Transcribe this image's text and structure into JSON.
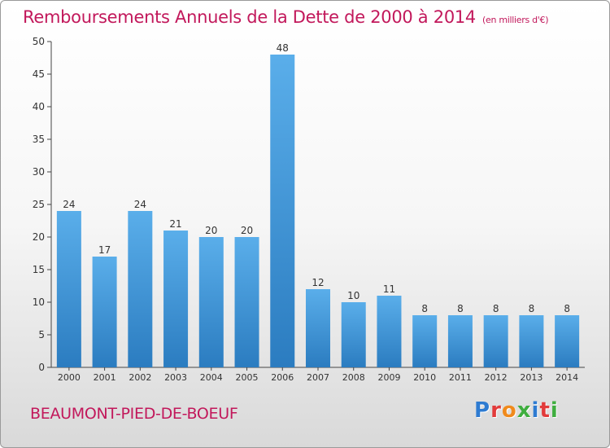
{
  "header": {
    "title": "Remboursements Annuels de la Dette de 2000 à 2014",
    "unit": "(en milliers d'€)"
  },
  "footer": {
    "commune": "BEAUMONT-PIED-DE-BOEUF",
    "logo": "Proxiti"
  },
  "colors": {
    "title": "#c2185b",
    "bar": "#3d95d8",
    "logo": [
      "#2e7bd1",
      "#e23b3b",
      "#f08a1c",
      "#3fae3f",
      "#2e7bd1",
      "#e23b3b",
      "#3fae3f"
    ]
  },
  "chart_data": {
    "type": "bar",
    "title": "Remboursements Annuels de la Dette de 2000 à 2014",
    "categories": [
      "2000",
      "2001",
      "2002",
      "2003",
      "2004",
      "2005",
      "2006",
      "2007",
      "2008",
      "2009",
      "2010",
      "2011",
      "2012",
      "2013",
      "2014"
    ],
    "values": [
      24,
      17,
      24,
      21,
      20,
      20,
      48,
      12,
      10,
      11,
      8,
      8,
      8,
      8,
      8
    ],
    "ylim": [
      0,
      50
    ],
    "yticks": [
      0,
      5,
      10,
      15,
      20,
      25,
      30,
      35,
      40,
      45,
      50
    ],
    "grid": false,
    "data_labels": true
  }
}
